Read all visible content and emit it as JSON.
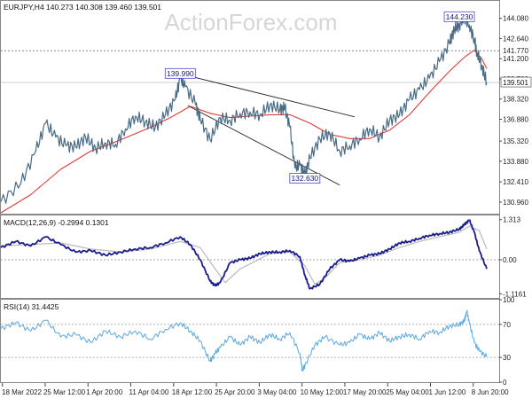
{
  "watermark": "ActionForex.com",
  "colors": {
    "price": "#4a6b85",
    "ma": "#e23a3a",
    "channel": "#222222",
    "macd_main": "#1a1d8c",
    "macd_signal": "#b9b9b9",
    "rsi": "#5aa7e0",
    "ref_line": "#777777",
    "grid": "#9a9a9a",
    "label_box": "#4b4bd8"
  },
  "chart_data": [
    {
      "type": "line",
      "title": "EURJPY,H4  140.273 140.308 139.460 139.501",
      "ylim": [
        130.2,
        145.2
      ],
      "y_ticks": [
        "144.080",
        "142.640",
        "141.200",
        "139.760",
        "138.320",
        "136.880",
        "135.320",
        "133.880",
        "132.410",
        "130.960"
      ],
      "reference_line": {
        "value": 141.77,
        "label": "141.770"
      },
      "current_price": {
        "value": 139.501,
        "label": "139.501"
      },
      "annotations": [
        {
          "text": "139.990",
          "x": 0.36,
          "y": 139.99
        },
        {
          "text": "132.630",
          "x": 0.61,
          "y": 132.63
        },
        {
          "text": "144.230",
          "x": 0.92,
          "y": 144.23
        }
      ],
      "channel": {
        "upper": [
          [
            0.375,
            139.99
          ],
          [
            0.71,
            137.05
          ]
        ],
        "lower": [
          [
            0.375,
            137.85
          ],
          [
            0.68,
            132.18
          ]
        ]
      },
      "series": [
        {
          "name": "EURJPY",
          "x": [
            0,
            0.04,
            0.07,
            0.09,
            0.11,
            0.13,
            0.15,
            0.17,
            0.19,
            0.21,
            0.23,
            0.25,
            0.27,
            0.29,
            0.31,
            0.33,
            0.35,
            0.36,
            0.37,
            0.39,
            0.4,
            0.42,
            0.44,
            0.46,
            0.48,
            0.5,
            0.52,
            0.54,
            0.56,
            0.57,
            0.58,
            0.59,
            0.6,
            0.61,
            0.62,
            0.64,
            0.66,
            0.68,
            0.7,
            0.72,
            0.74,
            0.76,
            0.78,
            0.8,
            0.82,
            0.84,
            0.86,
            0.88,
            0.9,
            0.91,
            0.92,
            0.93,
            0.94,
            0.95,
            0.955,
            0.965,
            0.975
          ],
          "values": [
            131.0,
            132.3,
            134.6,
            136.6,
            135.6,
            135.0,
            134.9,
            135.6,
            134.8,
            135.2,
            135.1,
            136.2,
            137.1,
            136.7,
            136.3,
            137.2,
            138.3,
            139.8,
            139.2,
            138.0,
            136.9,
            135.4,
            137.0,
            136.8,
            137.3,
            137.4,
            137.2,
            137.9,
            137.6,
            137.7,
            136.3,
            133.4,
            133.6,
            132.9,
            134.1,
            135.5,
            135.9,
            134.6,
            135.0,
            135.5,
            136.2,
            135.6,
            136.8,
            137.2,
            138.3,
            139.0,
            139.8,
            141.0,
            142.3,
            143.3,
            143.6,
            144.2,
            143.6,
            142.6,
            141.7,
            140.7,
            139.5
          ]
        },
        {
          "name": "MA",
          "x": [
            0,
            0.06,
            0.12,
            0.18,
            0.24,
            0.3,
            0.34,
            0.38,
            0.42,
            0.46,
            0.5,
            0.54,
            0.58,
            0.62,
            0.66,
            0.7,
            0.74,
            0.78,
            0.82,
            0.86,
            0.9,
            0.93,
            0.95,
            0.965,
            0.975
          ],
          "values": [
            130.2,
            131.5,
            133.3,
            134.6,
            135.4,
            136.3,
            137.0,
            137.8,
            137.3,
            137.0,
            137.1,
            137.2,
            137.2,
            136.6,
            135.8,
            135.5,
            135.5,
            136.1,
            137.2,
            138.8,
            140.3,
            141.3,
            141.8,
            141.2,
            140.5
          ]
        }
      ]
    },
    {
      "type": "line",
      "title": "MACD(12,26,9) -0.2994 0.1301",
      "ylim": [
        -1.25,
        1.45
      ],
      "y_ticks": [
        "1.313",
        "0.00",
        "-1.1161"
      ],
      "reference_line": {
        "value": 0,
        "label": "0.00"
      },
      "series": [
        {
          "name": "MACD",
          "x": [
            0,
            0.03,
            0.06,
            0.09,
            0.12,
            0.15,
            0.18,
            0.21,
            0.24,
            0.27,
            0.3,
            0.33,
            0.36,
            0.38,
            0.4,
            0.42,
            0.43,
            0.44,
            0.46,
            0.48,
            0.5,
            0.52,
            0.54,
            0.56,
            0.58,
            0.6,
            0.61,
            0.62,
            0.64,
            0.66,
            0.68,
            0.7,
            0.72,
            0.74,
            0.76,
            0.78,
            0.8,
            0.82,
            0.84,
            0.86,
            0.88,
            0.9,
            0.92,
            0.93,
            0.94,
            0.95,
            0.96,
            0.975
          ],
          "values": [
            0.4,
            0.6,
            0.45,
            0.75,
            0.5,
            0.25,
            0.3,
            0.15,
            0.25,
            0.35,
            0.4,
            0.55,
            0.75,
            0.5,
            0.0,
            -0.7,
            -0.85,
            -0.75,
            -0.1,
            0.0,
            0.05,
            0.2,
            0.25,
            0.25,
            0.3,
            0.1,
            -0.5,
            -0.95,
            -0.8,
            -0.3,
            0.0,
            -0.05,
            0.05,
            0.15,
            0.2,
            0.35,
            0.55,
            0.6,
            0.7,
            0.8,
            0.85,
            0.9,
            1.0,
            1.15,
            1.3,
            0.9,
            0.3,
            -0.3
          ]
        },
        {
          "name": "Signal",
          "x": [
            0,
            0.06,
            0.12,
            0.18,
            0.24,
            0.3,
            0.36,
            0.4,
            0.43,
            0.45,
            0.48,
            0.54,
            0.58,
            0.61,
            0.63,
            0.65,
            0.68,
            0.72,
            0.76,
            0.8,
            0.84,
            0.88,
            0.92,
            0.94,
            0.96,
            0.975
          ],
          "values": [
            0.45,
            0.5,
            0.55,
            0.35,
            0.25,
            0.35,
            0.6,
            0.4,
            -0.3,
            -0.75,
            -0.3,
            0.2,
            0.25,
            -0.2,
            -0.8,
            -0.6,
            -0.1,
            0.0,
            0.15,
            0.4,
            0.6,
            0.75,
            0.9,
            1.1,
            0.95,
            0.35
          ]
        }
      ]
    },
    {
      "type": "line",
      "title": "RSI(14) 31.4425",
      "ylim": [
        0,
        100
      ],
      "y_ticks": [
        "100",
        "70",
        "30",
        "0"
      ],
      "reference_lines": [
        70,
        30
      ],
      "series": [
        {
          "name": "RSI",
          "x": [
            0,
            0.03,
            0.06,
            0.09,
            0.12,
            0.15,
            0.18,
            0.21,
            0.24,
            0.27,
            0.3,
            0.33,
            0.36,
            0.38,
            0.4,
            0.42,
            0.43,
            0.44,
            0.46,
            0.48,
            0.5,
            0.52,
            0.54,
            0.56,
            0.58,
            0.6,
            0.605,
            0.61,
            0.63,
            0.65,
            0.68,
            0.7,
            0.72,
            0.74,
            0.76,
            0.78,
            0.8,
            0.82,
            0.84,
            0.86,
            0.88,
            0.9,
            0.92,
            0.93,
            0.935,
            0.94,
            0.95,
            0.96,
            0.975
          ],
          "values": [
            65,
            72,
            62,
            75,
            55,
            58,
            48,
            62,
            55,
            62,
            52,
            64,
            72,
            62,
            50,
            25,
            35,
            42,
            55,
            45,
            55,
            48,
            58,
            52,
            60,
            35,
            14,
            20,
            45,
            55,
            45,
            48,
            58,
            52,
            60,
            50,
            55,
            58,
            52,
            62,
            60,
            68,
            70,
            74,
            86,
            72,
            48,
            38,
            31
          ]
        }
      ]
    }
  ],
  "x_axis_labels": [
    "18 Mar 2022",
    "25 Mar 12:00",
    "1 Apr 20:00",
    "11 Apr 04:00",
    "18 Apr 12:00",
    "25 Apr 20:00",
    "3 May 04:00",
    "10 May 12:00",
    "17 May 20:00",
    "25 May 04:00",
    "1 Jun 12:00",
    "8 Jun 20:00"
  ]
}
